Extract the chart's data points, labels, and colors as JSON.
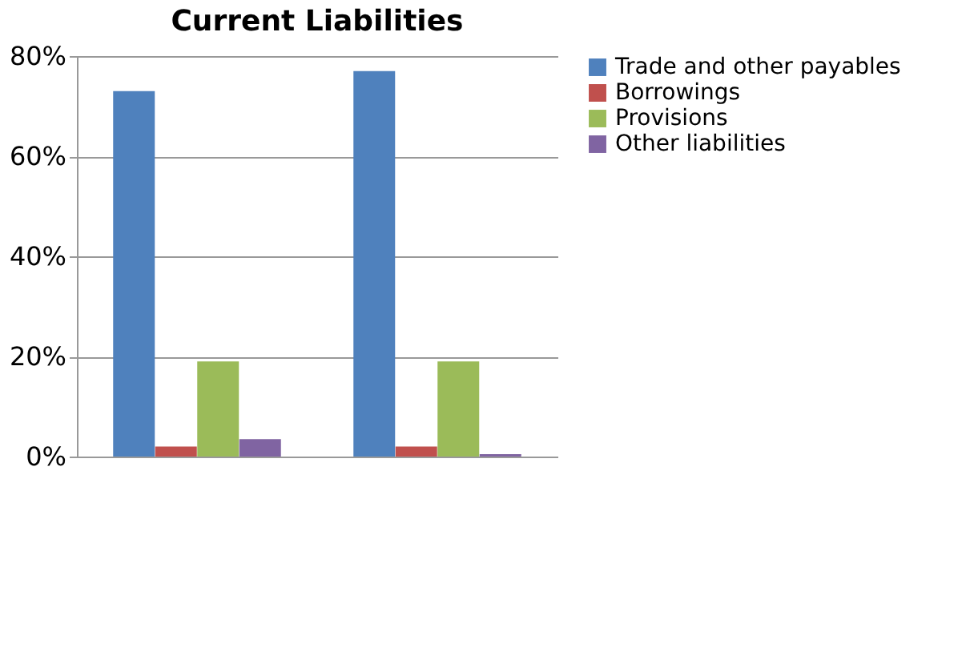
{
  "chart_data": {
    "type": "bar",
    "title": "Current Liabilities",
    "categories": [
      null,
      null
    ],
    "series": [
      {
        "name": "Trade and other payables",
        "color": "#4f81bd",
        "values": [
          73,
          77
        ]
      },
      {
        "name": "Borrowings",
        "color": "#c0504d",
        "values": [
          2,
          2
        ]
      },
      {
        "name": "Provisions",
        "color": "#9bbb59",
        "values": [
          19,
          19
        ]
      },
      {
        "name": "Other liabilities",
        "color": "#8064a2",
        "values": [
          3.5,
          0.5
        ]
      }
    ],
    "ylim": [
      0,
      80
    ],
    "yticks": [
      {
        "value": 0,
        "label": "0%"
      },
      {
        "value": 20,
        "label": "20%"
      },
      {
        "value": 40,
        "label": "40%"
      },
      {
        "value": 60,
        "label": "60%"
      },
      {
        "value": 80,
        "label": "80%"
      }
    ],
    "grid": "y",
    "legend": "right"
  }
}
